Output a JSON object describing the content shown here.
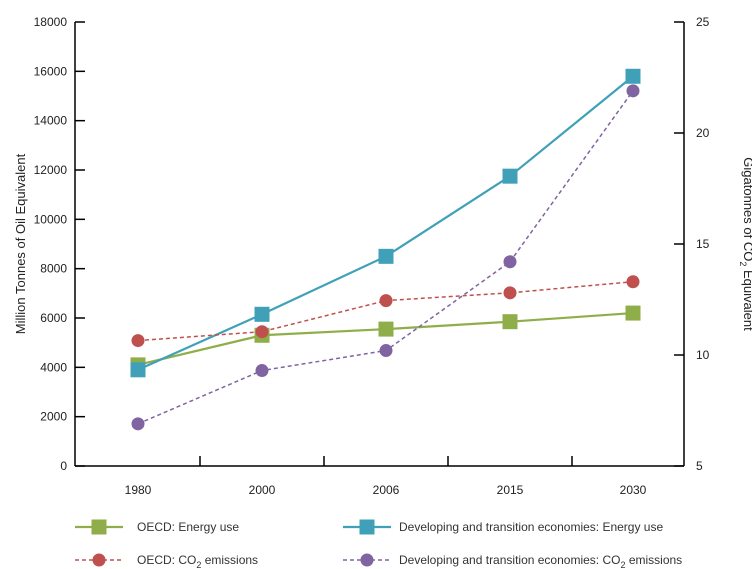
{
  "chart_data": {
    "type": "line",
    "categories": [
      "1980",
      "2000",
      "2006",
      "2015",
      "2030"
    ],
    "left_axis": {
      "label": "Million Tonnes of Oil Equivalent",
      "range": [
        0,
        18000
      ],
      "ticks": [
        0,
        2000,
        4000,
        6000,
        8000,
        10000,
        12000,
        14000,
        16000,
        18000
      ]
    },
    "right_axis": {
      "label_main": "Gigatonnes of CO",
      "label_sub": "2",
      "label_end": " Equivalent",
      "range": [
        5,
        25
      ],
      "ticks": [
        5,
        10,
        15,
        20,
        25
      ]
    },
    "series": [
      {
        "key": "oecd_energy",
        "name": "OECD: Energy use",
        "name_main": "OECD: Energy use",
        "name_sub": "",
        "name_end": "",
        "axis": "left",
        "color": "#8fae4a",
        "marker": "square",
        "dashed": false,
        "values": [
          4100,
          5300,
          5550,
          5850,
          6200
        ]
      },
      {
        "key": "dev_energy",
        "name": "Developing and transition economies: Energy use",
        "name_main": "Developing and transition economies: Energy use",
        "name_sub": "",
        "name_end": "",
        "axis": "left",
        "color": "#3fa0b8",
        "marker": "square",
        "dashed": false,
        "values": [
          3900,
          6150,
          8500,
          11750,
          15800
        ]
      },
      {
        "key": "oecd_co2",
        "name": "OECD: CO2 emissions",
        "name_main": "OECD: CO",
        "name_sub": "2",
        "name_end": " emissions",
        "axis": "right",
        "color": "#c0504d",
        "marker": "circle",
        "dashed": true,
        "values": [
          10.65,
          11.05,
          12.45,
          12.8,
          13.3
        ]
      },
      {
        "key": "dev_co2",
        "name": "Developing and transition economies: CO2 emissions",
        "name_main": "Developing and transition economies: CO",
        "name_sub": "2",
        "name_end": " emissions",
        "axis": "right",
        "color": "#8064a2",
        "marker": "circle",
        "dashed": true,
        "values": [
          6.9,
          9.3,
          10.2,
          14.2,
          21.9
        ]
      }
    ]
  }
}
